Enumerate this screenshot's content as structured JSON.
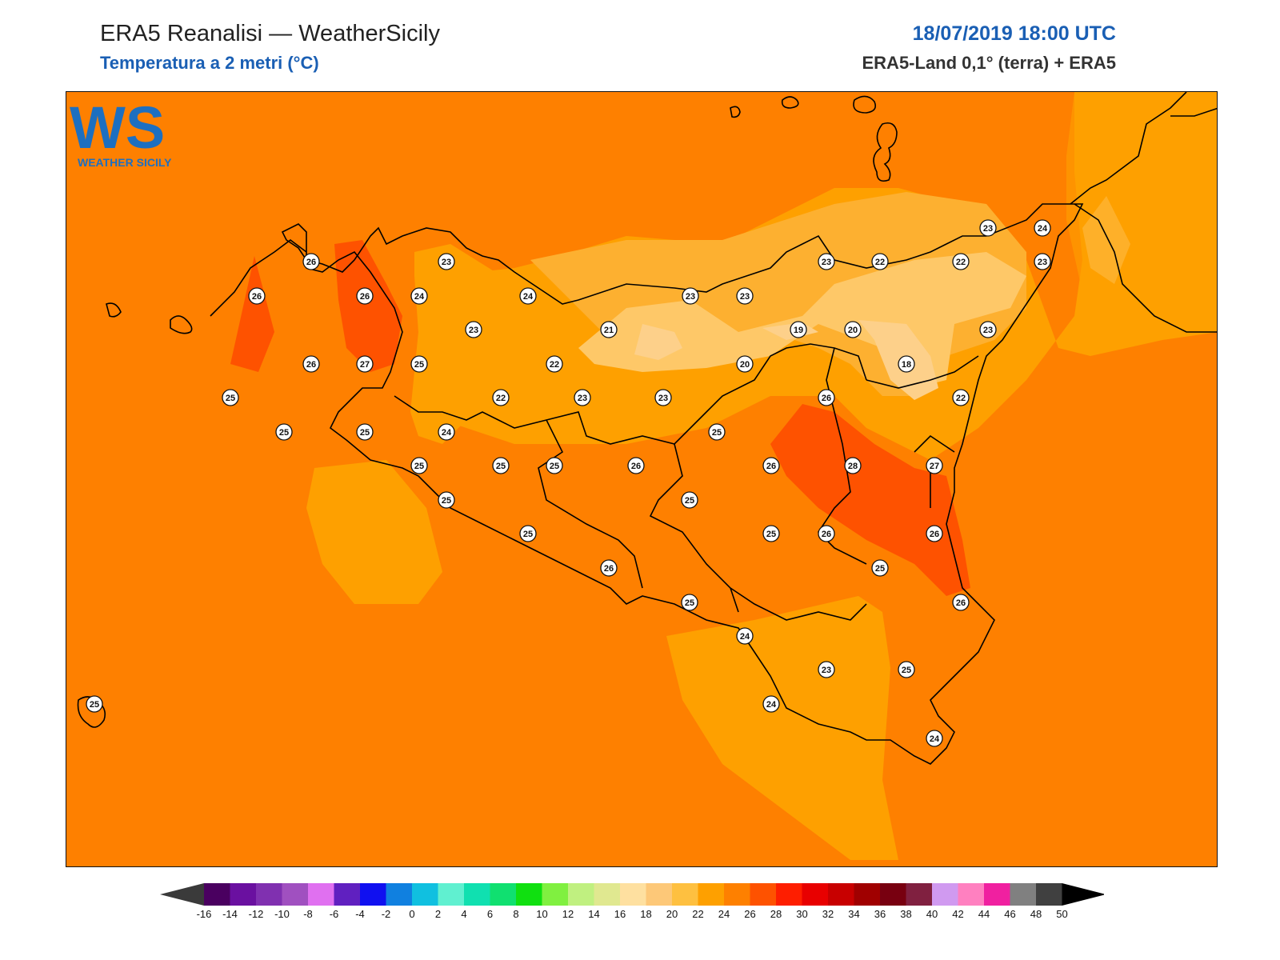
{
  "header": {
    "title": "ERA5 Reanalisi — WeatherSicily",
    "subtitle": "Temperatura a 2 metri (°C)",
    "datetime": "18/07/2019 18:00 UTC",
    "source": "ERA5-Land 0,1° (terra) + ERA5"
  },
  "logo": {
    "text": "WS",
    "caption": "WEATHER SICILY",
    "icon": "weather-sicily-logo"
  },
  "colors": {
    "t18": "#fdd08a",
    "t20": "#fec868",
    "t22": "#fdb030",
    "t24": "#fea000",
    "t26": "#fe8000",
    "t28": "#fe5200"
  },
  "stations": [
    {
      "v": "26"
    },
    {
      "v": "26"
    },
    {
      "v": "26"
    },
    {
      "v": "26"
    },
    {
      "v": "27"
    },
    {
      "v": "25"
    },
    {
      "v": "25"
    },
    {
      "v": "25"
    },
    {
      "v": "23"
    },
    {
      "v": "24"
    },
    {
      "v": "24"
    },
    {
      "v": "23"
    },
    {
      "v": "25"
    },
    {
      "v": "22"
    },
    {
      "v": "21"
    },
    {
      "v": "22"
    },
    {
      "v": "23"
    },
    {
      "v": "23"
    },
    {
      "v": "24"
    },
    {
      "v": "23"
    },
    {
      "v": "23"
    },
    {
      "v": "20"
    },
    {
      "v": "19"
    },
    {
      "v": "20"
    },
    {
      "v": "23"
    },
    {
      "v": "22"
    },
    {
      "v": "22"
    },
    {
      "v": "23"
    },
    {
      "v": "24"
    },
    {
      "v": "23"
    },
    {
      "v": "23"
    },
    {
      "v": "18"
    },
    {
      "v": "22"
    },
    {
      "v": "26"
    },
    {
      "v": "25"
    },
    {
      "v": "25"
    },
    {
      "v": "25"
    },
    {
      "v": "25"
    },
    {
      "v": "26"
    },
    {
      "v": "26"
    },
    {
      "v": "28"
    },
    {
      "v": "27"
    },
    {
      "v": "25"
    },
    {
      "v": "25"
    },
    {
      "v": "25"
    },
    {
      "v": "26"
    },
    {
      "v": "26"
    },
    {
      "v": "26"
    },
    {
      "v": "25"
    },
    {
      "v": "25"
    },
    {
      "v": "25"
    },
    {
      "v": "26"
    },
    {
      "v": "24"
    },
    {
      "v": "23"
    },
    {
      "v": "25"
    },
    {
      "v": "24"
    },
    {
      "v": "24"
    },
    {
      "v": "25"
    }
  ],
  "colorbar": {
    "ticks": [
      "-16",
      "-14",
      "-12",
      "-10",
      "-8",
      "-6",
      "-4",
      "-2",
      "0",
      "2",
      "4",
      "6",
      "8",
      "10",
      "12",
      "14",
      "16",
      "18",
      "20",
      "22",
      "24",
      "26",
      "28",
      "30",
      "32",
      "34",
      "36",
      "38",
      "40",
      "42",
      "44",
      "46",
      "48",
      "50"
    ],
    "colors": [
      "#4a0060",
      "#6a10a0",
      "#8030b0",
      "#a050c0",
      "#e070f0",
      "#6020c0",
      "#1010f0",
      "#1080e0",
      "#10c0e0",
      "#60f0d0",
      "#10e0b0",
      "#10e070",
      "#10e010",
      "#80f040",
      "#c0f080",
      "#e0e890",
      "#fee0a0",
      "#fdc878",
      "#fec040",
      "#fea000",
      "#fe8000",
      "#fe5200",
      "#fe1e00",
      "#e80000",
      "#c80000",
      "#a00000",
      "#780010",
      "#802040",
      "#d09af0",
      "#ff80c0",
      "#f020a0",
      "#808080",
      "#404040"
    ]
  }
}
